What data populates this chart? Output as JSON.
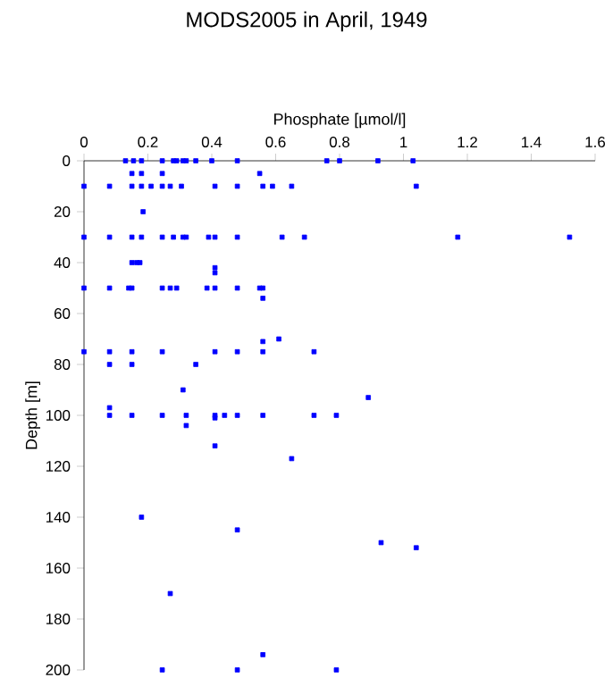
{
  "chart_data": {
    "type": "scatter",
    "title": "MODS2005 in April, 1949",
    "xlabel": "Phosphate [µmol/l]",
    "ylabel": "Depth [m]",
    "xlim": [
      0,
      1.6
    ],
    "ylim": [
      200,
      0
    ],
    "xticks": [
      0,
      0.2,
      0.4,
      0.6,
      0.8,
      1,
      1.2,
      1.4,
      1.6
    ],
    "yticks": [
      0,
      20,
      40,
      60,
      80,
      100,
      120,
      140,
      160,
      180,
      200
    ],
    "marker": "square",
    "color": "#0000ff",
    "x": [
      0.13,
      0.155,
      0.18,
      0.245,
      0.28,
      0.29,
      0.31,
      0.32,
      0.35,
      0.4,
      0.48,
      0.76,
      0.8,
      0.92,
      1.03,
      0.15,
      0.18,
      0.245,
      0.55,
      0,
      0.08,
      0.15,
      0.18,
      0.21,
      0.245,
      0.27,
      0.305,
      0.41,
      0.48,
      0.56,
      0.59,
      0.65,
      1.04,
      0.185,
      0,
      0.08,
      0.15,
      0.18,
      0.245,
      0.28,
      0.31,
      0.32,
      0.39,
      0.41,
      0.48,
      0.62,
      0.69,
      1.17,
      1.52,
      0.15,
      0.165,
      0.175,
      0.41,
      0.41,
      0,
      0.08,
      0.14,
      0.15,
      0.245,
      0.27,
      0.29,
      0.385,
      0.41,
      0.48,
      0.55,
      0.56,
      0.56,
      0.61,
      0.56,
      0,
      0.08,
      0.15,
      0.245,
      0.41,
      0.48,
      0.56,
      0.72,
      0.08,
      0.15,
      0.35,
      0.31,
      0.89,
      0.08,
      0.08,
      0.15,
      0.245,
      0.32,
      0.41,
      0.44,
      0.48,
      0.56,
      0.72,
      0.79,
      0.41,
      0.32,
      0.41,
      0.65,
      0.18,
      0.48,
      0.93,
      1.04,
      0.27,
      0.56,
      0.245,
      0.48,
      0.79
    ],
    "values": [
      0,
      0,
      0,
      0,
      0,
      0,
      0,
      0,
      0,
      0,
      0,
      0,
      0,
      0,
      0,
      5,
      5,
      5,
      5,
      10,
      10,
      10,
      10,
      10,
      10,
      10,
      10,
      10,
      10,
      10,
      10,
      10,
      10,
      20,
      30,
      30,
      30,
      30,
      30,
      30,
      30,
      30,
      30,
      30,
      30,
      30,
      30,
      30,
      30,
      40,
      40,
      40,
      42,
      44,
      50,
      50,
      50,
      50,
      50,
      50,
      50,
      50,
      50,
      50,
      50,
      50,
      54,
      70,
      71,
      75,
      75,
      75,
      75,
      75,
      75,
      75,
      75,
      80,
      80,
      80,
      90,
      93,
      97,
      100,
      100,
      100,
      100,
      100,
      100,
      100,
      100,
      100,
      100,
      101,
      104,
      112,
      117,
      140,
      145,
      150,
      152,
      170,
      194,
      200,
      200,
      200
    ]
  }
}
